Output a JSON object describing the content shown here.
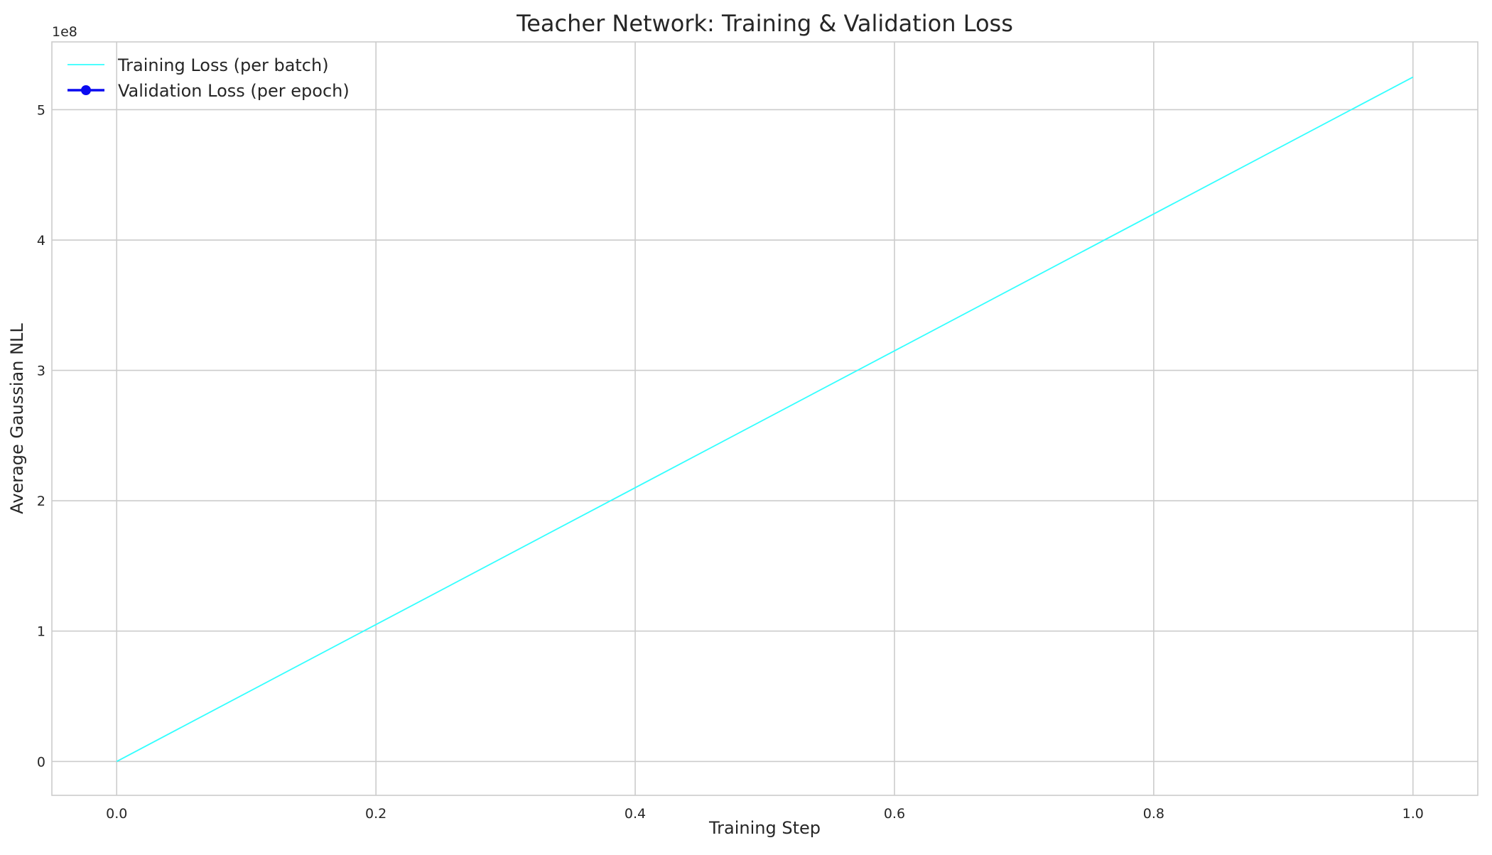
{
  "chart_data": {
    "type": "line",
    "title": "Teacher Network: Training & Validation Loss",
    "xlabel": "Training Step",
    "ylabel": "Average Gaussian NLL",
    "xlim": [
      -0.05,
      1.05
    ],
    "ylim": [
      -26000000,
      552000000
    ],
    "x_ticks": [
      0.0,
      0.2,
      0.4,
      0.6,
      0.8,
      1.0
    ],
    "x_tick_labels": [
      "0.0",
      "0.2",
      "0.4",
      "0.6",
      "0.8",
      "1.0"
    ],
    "y_ticks": [
      0,
      100000000,
      200000000,
      300000000,
      400000000,
      500000000
    ],
    "y_tick_labels": [
      "0",
      "1",
      "2",
      "3",
      "4",
      "5"
    ],
    "y_offset_label": "1e8",
    "grid": true,
    "legend_position": "top-left",
    "series": [
      {
        "name": "Training Loss (per batch)",
        "color": "#33ffff",
        "marker": "none",
        "x": [
          0.0,
          1.0
        ],
        "y": [
          0,
          525000000
        ]
      },
      {
        "name": "Validation Loss (per epoch)",
        "color": "#0a0af0",
        "marker": "circle",
        "x": [],
        "y": []
      }
    ]
  }
}
